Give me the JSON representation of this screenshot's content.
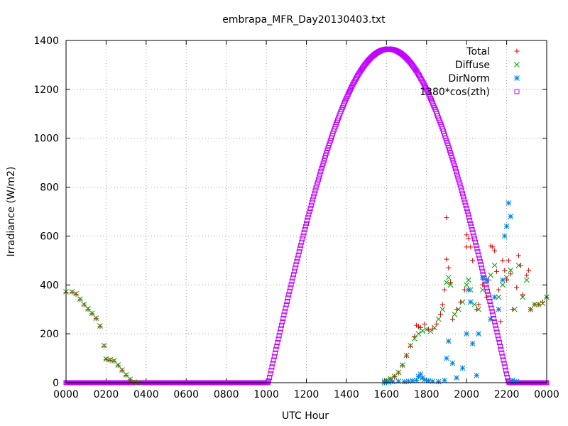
{
  "chart_data": {
    "type": "scatter",
    "title": "embrapa_MFR_Day20130403.txt",
    "xlabel": "UTC Hour",
    "ylabel": "Irradiance (W/m2)",
    "xlim": [
      0,
      24
    ],
    "ylim": [
      0,
      1400
    ],
    "x_ticks": [
      {
        "value": 0,
        "label": "0000"
      },
      {
        "value": 2,
        "label": "0200"
      },
      {
        "value": 4,
        "label": "0400"
      },
      {
        "value": 6,
        "label": "0600"
      },
      {
        "value": 8,
        "label": "0800"
      },
      {
        "value": 10,
        "label": "1000"
      },
      {
        "value": 12,
        "label": "1200"
      },
      {
        "value": 14,
        "label": "1400"
      },
      {
        "value": 16,
        "label": "1600"
      },
      {
        "value": 18,
        "label": "1800"
      },
      {
        "value": 20,
        "label": "2000"
      },
      {
        "value": 22,
        "label": "2200"
      },
      {
        "value": 24,
        "label": "0000"
      }
    ],
    "y_ticks": [
      0,
      200,
      400,
      600,
      800,
      1000,
      1200,
      1400
    ],
    "grid": true,
    "legend_position": "top-right",
    "series": [
      {
        "name": "Total",
        "marker": "plus",
        "color": "#e00000",
        "points": [
          [
            0.0,
            370
          ],
          [
            0.3,
            370
          ],
          [
            0.5,
            362
          ],
          [
            0.7,
            340
          ],
          [
            0.9,
            318
          ],
          [
            1.1,
            300
          ],
          [
            1.3,
            282
          ],
          [
            1.5,
            262
          ],
          [
            1.7,
            230
          ],
          [
            1.9,
            150
          ],
          [
            2.0,
            95
          ],
          [
            2.2,
            92
          ],
          [
            2.4,
            88
          ],
          [
            2.6,
            70
          ],
          [
            2.8,
            50
          ],
          [
            3.0,
            30
          ],
          [
            3.2,
            12
          ],
          [
            3.4,
            2
          ],
          [
            3.6,
            0
          ],
          [
            15.9,
            5
          ],
          [
            16.0,
            8
          ],
          [
            16.2,
            15
          ],
          [
            16.4,
            25
          ],
          [
            16.6,
            40
          ],
          [
            16.8,
            70
          ],
          [
            17.0,
            110
          ],
          [
            17.2,
            150
          ],
          [
            17.4,
            190
          ],
          [
            17.5,
            235
          ],
          [
            17.6,
            230
          ],
          [
            17.7,
            225
          ],
          [
            17.9,
            240
          ],
          [
            18.1,
            218
          ],
          [
            18.3,
            220
          ],
          [
            18.5,
            240
          ],
          [
            18.7,
            280
          ],
          [
            18.8,
            320
          ],
          [
            18.9,
            380
          ],
          [
            19.0,
            675
          ],
          [
            19.0,
            505
          ],
          [
            19.1,
            470
          ],
          [
            19.2,
            410
          ],
          [
            19.3,
            260
          ],
          [
            19.5,
            300
          ],
          [
            19.7,
            330
          ],
          [
            19.9,
            380
          ],
          [
            20.0,
            555
          ],
          [
            20.0,
            605
          ],
          [
            20.1,
            590
          ],
          [
            20.2,
            555
          ],
          [
            20.3,
            500
          ],
          [
            20.5,
            300
          ],
          [
            20.6,
            320
          ],
          [
            20.8,
            400
          ],
          [
            21.0,
            350
          ],
          [
            21.1,
            420
          ],
          [
            21.2,
            560
          ],
          [
            21.3,
            555
          ],
          [
            21.4,
            540
          ],
          [
            21.5,
            455
          ],
          [
            21.6,
            380
          ],
          [
            21.7,
            250
          ],
          [
            21.8,
            500
          ],
          [
            21.9,
            460
          ],
          [
            22.0,
            420
          ],
          [
            22.1,
            500
          ],
          [
            22.2,
            445
          ],
          [
            22.3,
            300
          ],
          [
            22.5,
            390
          ],
          [
            22.6,
            520
          ],
          [
            22.7,
            480
          ],
          [
            22.8,
            360
          ],
          [
            23.0,
            440
          ],
          [
            23.1,
            460
          ],
          [
            23.2,
            300
          ],
          [
            23.4,
            320
          ],
          [
            23.6,
            320
          ],
          [
            23.8,
            330
          ],
          [
            24.0,
            348
          ]
        ]
      },
      {
        "name": "Diffuse",
        "marker": "cross",
        "color": "#00a000",
        "points": [
          [
            0.0,
            372
          ],
          [
            0.3,
            372
          ],
          [
            0.5,
            364
          ],
          [
            0.7,
            342
          ],
          [
            0.9,
            320
          ],
          [
            1.1,
            302
          ],
          [
            1.3,
            284
          ],
          [
            1.5,
            264
          ],
          [
            1.7,
            232
          ],
          [
            1.9,
            152
          ],
          [
            2.0,
            97
          ],
          [
            2.2,
            94
          ],
          [
            2.4,
            90
          ],
          [
            2.6,
            72
          ],
          [
            2.8,
            52
          ],
          [
            3.0,
            32
          ],
          [
            3.2,
            14
          ],
          [
            3.4,
            3
          ],
          [
            3.6,
            0
          ],
          [
            15.9,
            6
          ],
          [
            16.0,
            9
          ],
          [
            16.2,
            16
          ],
          [
            16.4,
            26
          ],
          [
            16.6,
            42
          ],
          [
            16.8,
            72
          ],
          [
            17.0,
            112
          ],
          [
            17.2,
            152
          ],
          [
            17.4,
            180
          ],
          [
            17.6,
            200
          ],
          [
            17.8,
            212
          ],
          [
            18.0,
            218
          ],
          [
            18.2,
            210
          ],
          [
            18.4,
            225
          ],
          [
            18.6,
            260
          ],
          [
            18.8,
            300
          ],
          [
            19.0,
            410
          ],
          [
            19.1,
            430
          ],
          [
            19.2,
            400
          ],
          [
            19.4,
            280
          ],
          [
            19.6,
            300
          ],
          [
            19.8,
            330
          ],
          [
            20.0,
            400
          ],
          [
            20.1,
            420
          ],
          [
            20.2,
            380
          ],
          [
            20.4,
            320
          ],
          [
            20.6,
            300
          ],
          [
            20.8,
            380
          ],
          [
            21.0,
            420
          ],
          [
            21.2,
            440
          ],
          [
            21.4,
            480
          ],
          [
            21.6,
            350
          ],
          [
            21.8,
            400
          ],
          [
            22.0,
            430
          ],
          [
            22.2,
            460
          ],
          [
            22.4,
            300
          ],
          [
            22.6,
            480
          ],
          [
            22.8,
            350
          ],
          [
            23.0,
            420
          ],
          [
            23.2,
            300
          ],
          [
            23.4,
            320
          ],
          [
            23.6,
            320
          ],
          [
            23.8,
            325
          ],
          [
            24.0,
            350
          ]
        ]
      },
      {
        "name": "DirNorm",
        "marker": "star",
        "color": "#0080e0",
        "points": [
          [
            15.9,
            0
          ],
          [
            16.1,
            2
          ],
          [
            16.3,
            4
          ],
          [
            16.6,
            6
          ],
          [
            16.9,
            4
          ],
          [
            17.1,
            6
          ],
          [
            17.3,
            8
          ],
          [
            17.5,
            10
          ],
          [
            17.6,
            25
          ],
          [
            17.7,
            35
          ],
          [
            17.8,
            20
          ],
          [
            17.9,
            12
          ],
          [
            18.1,
            8
          ],
          [
            18.3,
            6
          ],
          [
            18.6,
            4
          ],
          [
            18.9,
            10
          ],
          [
            19.0,
            100
          ],
          [
            19.1,
            170
          ],
          [
            19.3,
            80
          ],
          [
            19.5,
            20
          ],
          [
            19.8,
            60
          ],
          [
            20.0,
            200
          ],
          [
            20.1,
            380
          ],
          [
            20.2,
            330
          ],
          [
            20.3,
            160
          ],
          [
            20.5,
            30
          ],
          [
            20.6,
            200
          ],
          [
            20.8,
            430
          ],
          [
            21.0,
            420
          ],
          [
            21.2,
            260
          ],
          [
            21.4,
            350
          ],
          [
            21.6,
            300
          ],
          [
            21.8,
            420
          ],
          [
            21.9,
            600
          ],
          [
            22.0,
            640
          ],
          [
            22.1,
            735
          ],
          [
            22.2,
            680
          ],
          [
            22.3,
            10
          ],
          [
            22.5,
            5
          ]
        ]
      },
      {
        "name": "1380*cos(zth)",
        "marker": "square",
        "color": "#c000ff",
        "curve": {
          "amplitude": 1365,
          "peak_hour": 16.1,
          "rise_hour": 10.1,
          "set_hour": 22.1
        }
      }
    ]
  }
}
